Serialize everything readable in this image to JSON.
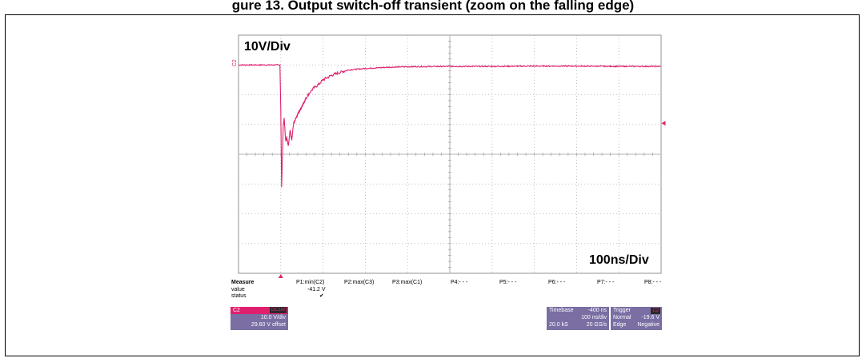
{
  "caption": "gure 13. Output switch-off transient (zoom on the falling edge)",
  "chart_data": {
    "type": "line",
    "title": "",
    "xlabel": "",
    "ylabel": "",
    "volts_per_div": 10,
    "ns_per_div": 100,
    "x_divisions": 10,
    "y_divisions": 8,
    "xlim": [
      -100,
      900
    ],
    "ylim": [
      -70,
      10
    ],
    "grid": true,
    "series": [
      {
        "name": "C2",
        "color": "#e0206e",
        "x": [
          -100,
          -2,
          0,
          2,
          4,
          6,
          8,
          10,
          12,
          14,
          18,
          22,
          26,
          30,
          36,
          42,
          50,
          60,
          70,
          80,
          90,
          100,
          120,
          140,
          160,
          200,
          250,
          300,
          400,
          500,
          600,
          700,
          800,
          900
        ],
        "y": [
          0,
          0,
          -15,
          -41.2,
          -30,
          -20,
          -18,
          -22,
          -26,
          -24,
          -27,
          -22,
          -25,
          -20,
          -18,
          -16,
          -14,
          -11,
          -9,
          -7.5,
          -6.5,
          -5,
          -3.5,
          -2.5,
          -1.7,
          -1.2,
          -0.8,
          -0.6,
          -0.5,
          -0.5,
          -0.4,
          -0.4,
          -0.5,
          -0.5
        ]
      }
    ],
    "annotations": {
      "vdiv": "10V/Div",
      "hdiv": "100ns/Div",
      "channel_tag": "C2"
    }
  },
  "measure": {
    "label": "Measure",
    "row_value": "value",
    "row_status": "status",
    "params": [
      "P1:min(C2)",
      "P2:max(C3)",
      "P3:max(C1)",
      "P4:- - -",
      "P5:- - -",
      "P6:- - -",
      "P7:- - -",
      "P8:- - -"
    ],
    "p1_value": "-41.2 V",
    "p1_status": "✔"
  },
  "channel_box": {
    "name": "C2",
    "chip": "DC1M",
    "vdiv": "10.0 V/div",
    "offset": "29.60 V offset"
  },
  "timebase_box": {
    "label": "Timebase",
    "delay": "-400 ns",
    "tdiv": "100 ns/div",
    "samples": "20.0 kS",
    "rate": "20 GS/s"
  },
  "trigger_box": {
    "label": "Trigger",
    "chip": "C2",
    "mode": "Normal",
    "level": "-19.6 V",
    "type": "Edge",
    "slope": "Negative"
  },
  "colors": {
    "trace": "#e0206e",
    "panel": "#7a6ea3"
  }
}
